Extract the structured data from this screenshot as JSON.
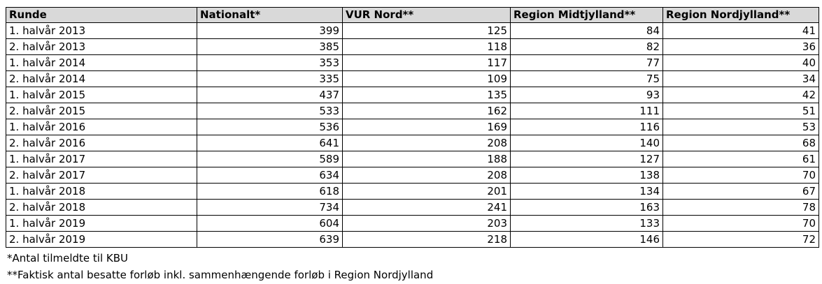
{
  "table": {
    "header": [
      "Runde",
      "Nationalt*",
      "VUR Nord**",
      "Region Midtjylland**",
      "Region Nordjylland**"
    ],
    "rows": [
      [
        "1. halvår 2013",
        399,
        125,
        84,
        41
      ],
      [
        "2. halvår 2013",
        385,
        118,
        82,
        36
      ],
      [
        "1. halvår 2014",
        353,
        117,
        77,
        40
      ],
      [
        "2. halvår 2014",
        335,
        109,
        75,
        34
      ],
      [
        "1. halvår 2015",
        437,
        135,
        93,
        42
      ],
      [
        "2. halvår 2015",
        533,
        162,
        111,
        51
      ],
      [
        "1. halvår 2016",
        536,
        169,
        116,
        53
      ],
      [
        "2. halvår 2016",
        641,
        208,
        140,
        68
      ],
      [
        "1. halvår 2017",
        589,
        188,
        127,
        61
      ],
      [
        "2. halvår 2017",
        634,
        208,
        138,
        70
      ],
      [
        "1. halvår 2018",
        618,
        201,
        134,
        67
      ],
      [
        "2. halvår 2018",
        734,
        241,
        163,
        78
      ],
      [
        "1. halvår 2019",
        604,
        203,
        133,
        70
      ],
      [
        "2. halvår 2019",
        639,
        218,
        146,
        72
      ]
    ]
  },
  "footnotes": [
    "*Antal tilmeldte til KBU",
    "**Faktisk antal besatte forløb inkl. sammenhængende forløb i Region Nordjylland"
  ]
}
